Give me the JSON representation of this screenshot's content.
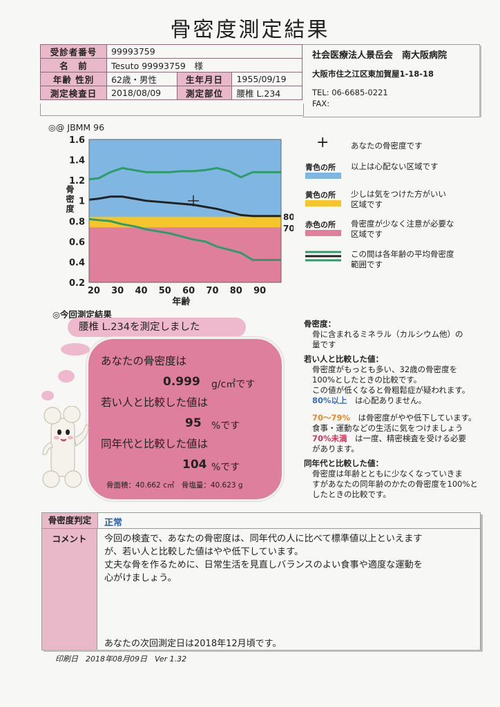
{
  "title": "骨密度測定結果",
  "patient": {
    "id_label": "受診者番号",
    "id": "99993759",
    "name_label": "名　前",
    "name": "Tesuto 99993759　様",
    "age_label": "年齢 性別",
    "age": "62歳・男性",
    "birth_label": "生年月日",
    "birth": "1955/09/19",
    "date_label": "測定検査日",
    "date": "2018/08/09",
    "site_label": "測定部位",
    "site": "腰椎 L.234"
  },
  "hospital": {
    "name": "社会医療法人景岳会　南大阪病院",
    "address": "大阪市住之江区東加賀屋1-18-18",
    "tel": "TEL:  06-6685-0221",
    "fax": "FAX:"
  },
  "chart_label": "◎@ JBMM 96",
  "chart_data": {
    "type": "line",
    "xlabel": "年齢",
    "ylabel": "骨密度",
    "xlim": [
      18,
      99
    ],
    "ylim": [
      0.2,
      1.6
    ],
    "x_ticks": [
      20,
      30,
      40,
      50,
      60,
      70,
      80,
      90
    ],
    "y_ticks": [
      0.2,
      0.4,
      0.6,
      0.8,
      1.0,
      1.2,
      1.4,
      1.6
    ],
    "y_tick_labels": [
      "0.2",
      "0.4",
      "0.6",
      "0.8",
      "1",
      "1.2",
      "1.4",
      "1.6"
    ],
    "zones": [
      {
        "name": "青色の所",
        "from": 0.84,
        "to": 1.6,
        "color": "#7fb6e2"
      },
      {
        "name": "黄色の所",
        "from": 0.74,
        "to": 0.84,
        "color": "#f5c52a"
      },
      {
        "name": "赤色の所",
        "from": 0.2,
        "to": 0.74,
        "color": "#e07f9c"
      }
    ],
    "zone_labels": [
      "80%",
      "70%"
    ],
    "series": [
      {
        "role": "upper",
        "color": "#2e9b6a",
        "x": [
          18,
          22,
          27,
          32,
          37,
          42,
          47,
          52,
          57,
          62,
          67,
          72,
          77,
          82,
          87,
          99
        ],
        "y": [
          1.21,
          1.22,
          1.28,
          1.32,
          1.3,
          1.28,
          1.28,
          1.28,
          1.29,
          1.29,
          1.3,
          1.32,
          1.29,
          1.23,
          1.28,
          1.28
        ]
      },
      {
        "role": "mean",
        "color": "#222222",
        "x": [
          18,
          22,
          27,
          32,
          37,
          42,
          47,
          52,
          57,
          62,
          67,
          72,
          77,
          82,
          87,
          99
        ],
        "y": [
          1.01,
          1.02,
          1.04,
          1.04,
          1.02,
          1.0,
          0.99,
          0.98,
          0.97,
          0.96,
          0.94,
          0.92,
          0.89,
          0.86,
          0.85,
          0.85
        ]
      },
      {
        "role": "lower",
        "color": "#2e9b6a",
        "x": [
          18,
          22,
          27,
          32,
          37,
          42,
          47,
          52,
          57,
          62,
          67,
          72,
          77,
          82,
          87,
          99
        ],
        "y": [
          0.82,
          0.81,
          0.8,
          0.77,
          0.75,
          0.72,
          0.7,
          0.68,
          0.65,
          0.62,
          0.6,
          0.55,
          0.52,
          0.49,
          0.42,
          0.42
        ]
      }
    ],
    "patient_point": {
      "x": 62,
      "y": 0.999
    }
  },
  "legend": {
    "mark": "あなたの骨密度です",
    "blue_label": "青色の所",
    "blue_text": "以上は心配ない区域です",
    "yellow_label": "黄色の所",
    "yellow_text1": "少しは気をつけた方がいい",
    "yellow_text2": "区域です",
    "red_label": "赤色の所",
    "red_text1": "骨密度が少なく注意が必要な",
    "red_text2": "区域です",
    "range_text1": "この間は各年齢の平均骨密度",
    "range_text2": "範囲です"
  },
  "result": {
    "heading": "◎今回測定結果",
    "site_msg": "腰椎 L.234を測定しました",
    "bmd_label": "あなたの骨密度は",
    "bmd_value": "0.999",
    "bmd_unit": "g/c㎡です",
    "yam_label": "若い人と比較した値は",
    "yam_value": "95",
    "yam_unit": "%です",
    "age_label": "同年代と比較した値は",
    "age_value": "104",
    "age_unit": "%です",
    "sub": "骨面積：40.662 c㎡　骨塩量：40.623 g"
  },
  "info": {
    "h1": "骨密度：",
    "t1a": "骨に含まれるミネラル（カルシウム他）の",
    "t1b": "量です",
    "h2": "若い人と比較した値：",
    "t2a": "骨密度がもっとも多い、32歳の骨密度を",
    "t2b": "100%としたときの比較です。",
    "t2c": "この値が低くなると骨粗鬆症が疑われます。",
    "t2d_key": "80%以上",
    "t2d": "　は心配ありません。",
    "t3_key": "70〜79%",
    "t3a": "　は骨密度がやや低下しています。",
    "t3b": "食事・運動などの生活に気をつけましょう",
    "t3c_key": "70%未満",
    "t3c": "　は一度、精密検査を受ける必要",
    "t3d": "があります。",
    "h4": "同年代と比較した値：",
    "t4a": "骨密度は年齢とともに少なくなっていきま",
    "t4b": "すがあなたの同年齢のかたの骨密度を100%と",
    "t4c": "したときの比較です。"
  },
  "judgment": {
    "label": "骨密度判定",
    "value": "正常",
    "comment_label": "コメント",
    "comment1": "今回の検査で、あなたの骨密度は、同年代の人に比べて標準値以上といえます",
    "comment2": "が、若い人と比較した値はやや低下しています。",
    "comment3": "丈夫な骨を作るために、日常生活を見直しバランスのよい食事や適度な運動を",
    "comment4": "心がけましょう。",
    "next": "あなたの次回測定日は2018年12月頃です。"
  },
  "footer": "印刷日　2018年08月09日　Ver 1.32"
}
